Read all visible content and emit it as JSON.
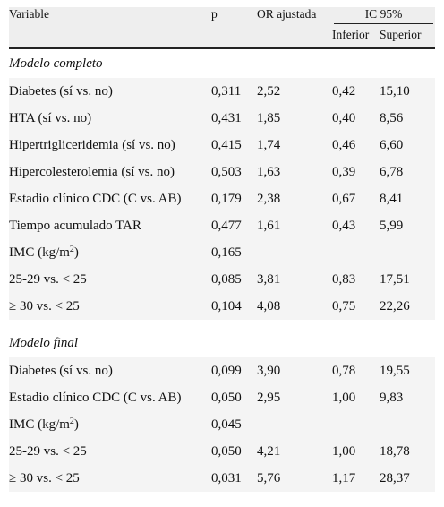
{
  "header": {
    "variable": "Variable",
    "p": "p",
    "or": "OR ajustada",
    "ic": "IC 95%",
    "inferior": "Inferior",
    "superior": "Superior"
  },
  "sections": [
    {
      "title": "Modelo completo",
      "rows": [
        {
          "variable": "Diabetes (sí vs. no)",
          "p": "0,311",
          "or": "2,52",
          "inf": "0,42",
          "sup": "15,10"
        },
        {
          "variable": "HTA (sí vs. no)",
          "p": "0,431",
          "or": "1,85",
          "inf": "0,40",
          "sup": "8,56"
        },
        {
          "variable": "Hipertrigliceridemia (sí vs. no)",
          "p": "0,415",
          "or": "1,74",
          "inf": "0,46",
          "sup": "6,60"
        },
        {
          "variable": "Hipercolesterolemia (sí vs. no)",
          "p": "0,503",
          "or": "1,63",
          "inf": "0,39",
          "sup": "6,78"
        },
        {
          "variable": "Estadio clínico CDC (C vs. AB)",
          "p": "0,179",
          "or": "2,38",
          "inf": "0,67",
          "sup": "8,41"
        },
        {
          "variable": "Tiempo acumulado TAR",
          "p": "0,477",
          "or": "1,61",
          "inf": "0,43",
          "sup": "5,99"
        },
        {
          "variable": "IMC (kg/m",
          "variable_sup": "2",
          "variable_tail": ")",
          "p": "0,165",
          "or": "",
          "inf": "",
          "sup": ""
        },
        {
          "variable": "25-29 vs. < 25",
          "p": "0,085",
          "or": "3,81",
          "inf": "0,83",
          "sup": "17,51"
        },
        {
          "variable": "≥ 30 vs. < 25",
          "p": "0,104",
          "or": "4,08",
          "inf": "0,75",
          "sup": "22,26"
        }
      ]
    },
    {
      "title": "Modelo final",
      "rows": [
        {
          "variable": "Diabetes (sí vs. no)",
          "p": "0,099",
          "or": "3,90",
          "inf": "0,78",
          "sup": "19,55"
        },
        {
          "variable": "Estadio clínico CDC (C vs. AB)",
          "p": "0,050",
          "or": "2,95",
          "inf": "1,00",
          "sup": "9,83"
        },
        {
          "variable": "IMC (kg/m",
          "variable_sup": "2",
          "variable_tail": ")",
          "p": "0,045",
          "or": "",
          "inf": "",
          "sup": ""
        },
        {
          "variable": "25-29 vs. < 25",
          "p": "0,050",
          "or": "4,21",
          "inf": "1,00",
          "sup": "18,78"
        },
        {
          "variable": "≥ 30 vs. < 25",
          "p": "0,031",
          "or": "5,76",
          "inf": "1,17",
          "sup": "28,37"
        }
      ]
    }
  ]
}
